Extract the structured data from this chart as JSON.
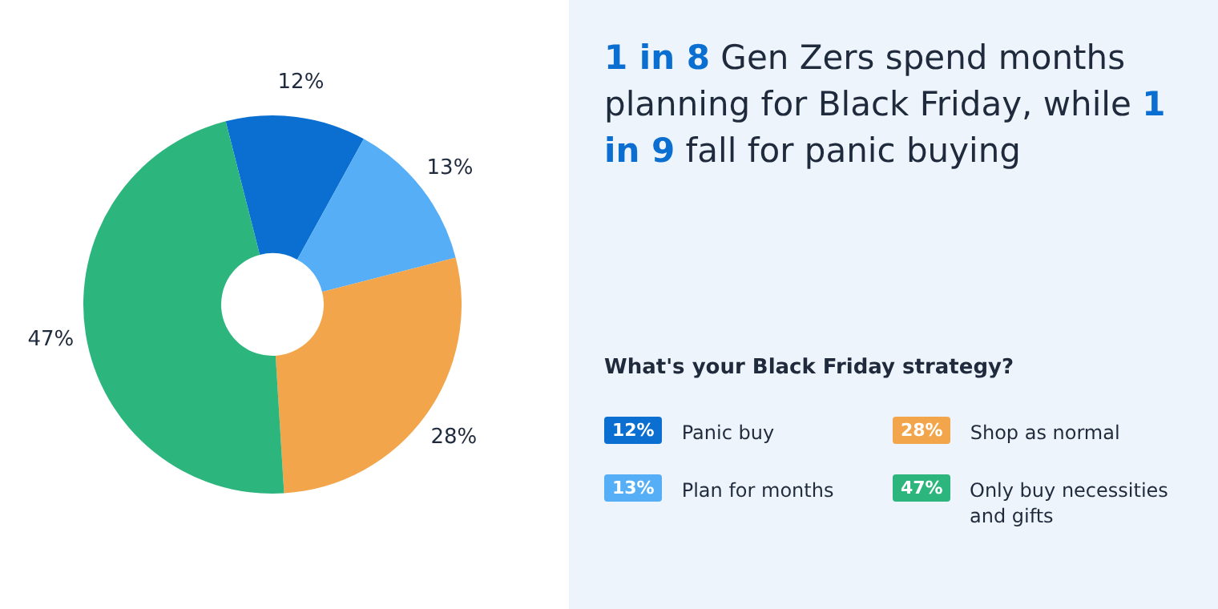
{
  "chart_data": {
    "type": "donut",
    "title": "1 in 8 Gen Zers spend months planning for Black Friday, while 1 in 9 fall for panic buying",
    "subtitle": "What's your Black Friday strategy?",
    "categories": [
      "Panic buy",
      "Plan for months",
      "Shop as normal",
      "Only buy necessities and gifts"
    ],
    "values": [
      12,
      13,
      28,
      47
    ],
    "value_labels": [
      "12%",
      "13%",
      "28%",
      "47%"
    ],
    "colors": [
      "#0a6fd1",
      "#56aef7",
      "#f2a54a",
      "#2db57e"
    ],
    "legend": "bottom right"
  }
}
